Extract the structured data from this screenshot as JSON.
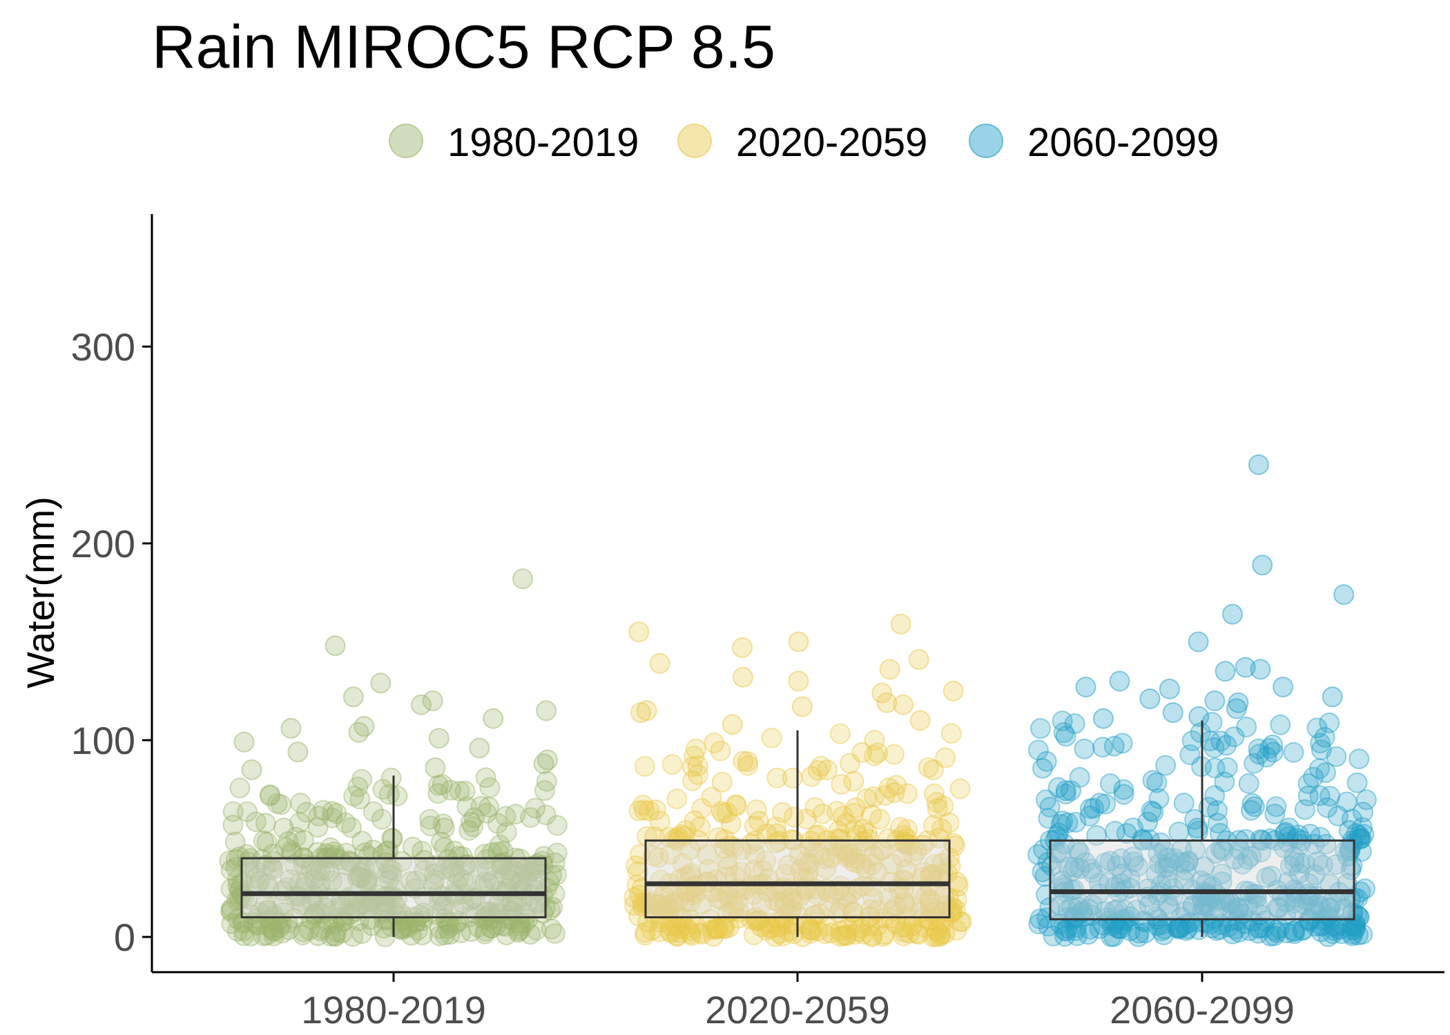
{
  "chart_data": {
    "type": "box",
    "title": "Rain MIROC5 RCP 8.5",
    "xlabel": "",
    "ylabel": "Water(mm)",
    "categories": [
      "1980-2019",
      "2020-2059",
      "2060-2099"
    ],
    "ylim": [
      -16,
      365
    ],
    "yticks": [
      0,
      100,
      200,
      300
    ],
    "grid": false,
    "legend_position": "top",
    "series": [
      {
        "name": "1980-2019",
        "color": "#9cb46c",
        "box": {
          "min": 0,
          "q1": 10,
          "median": 22,
          "q3": 40,
          "max": 82
        },
        "outliers": [
          182,
          148,
          129,
          122,
          120,
          118,
          115,
          111,
          107,
          106,
          104,
          101,
          99,
          96,
          94,
          90,
          88,
          86,
          85
        ]
      },
      {
        "name": "2020-2059",
        "color": "#e8c84a",
        "box": {
          "min": 0,
          "q1": 10,
          "median": 27,
          "q3": 49,
          "max": 105
        },
        "outliers": [
          159,
          155,
          150,
          147,
          141,
          139,
          136,
          132,
          130,
          125,
          124,
          119,
          118,
          117,
          115,
          114,
          110,
          108
        ]
      },
      {
        "name": "2060-2099",
        "color": "#1f9dc6",
        "box": {
          "min": 0,
          "q1": 9,
          "median": 23,
          "q3": 49,
          "max": 110
        },
        "outliers": [
          240,
          189,
          174,
          164,
          150,
          137,
          136,
          135,
          130,
          127,
          127,
          126,
          122,
          121,
          120,
          119,
          116,
          114,
          112,
          111
        ]
      }
    ]
  }
}
